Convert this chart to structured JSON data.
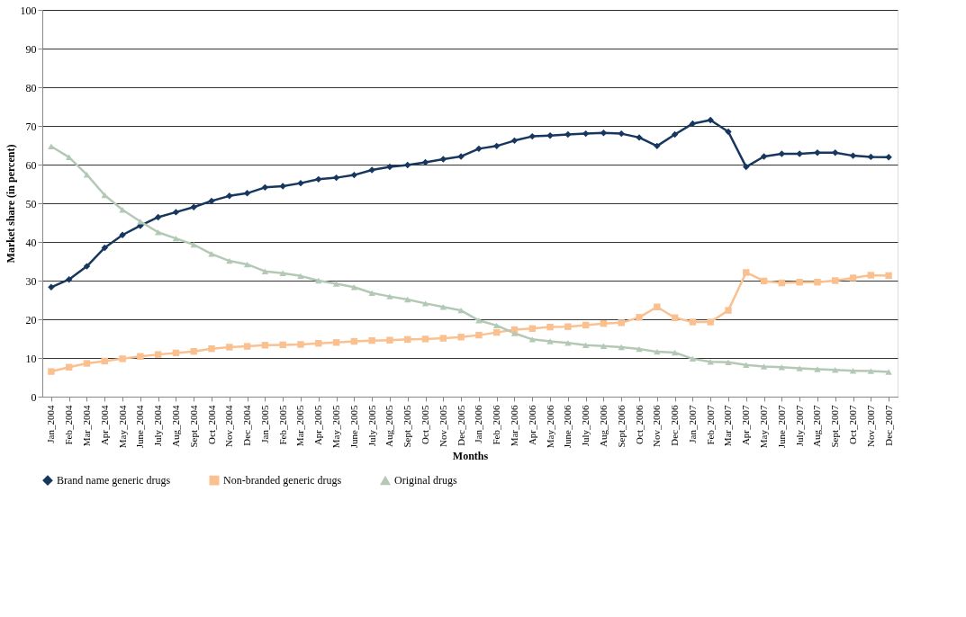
{
  "chart_data": {
    "type": "line",
    "xlabel": "Months",
    "ylabel": "Market share (in percent)",
    "categories": [
      "Jan_2004",
      "Feb_2004",
      "Mar_2004",
      "Apr_2004",
      "May_2004",
      "June_2004",
      "July_2004",
      "Aug_2004",
      "Sept_2004",
      "Oct_2004",
      "Nov_2004",
      "Dec_2004",
      "Jan_2005",
      "Feb_2005",
      "Mar_2005",
      "Apr_2005",
      "May_2005",
      "June_2005",
      "July_2005",
      "Aug_2005",
      "Sept_2005",
      "Oct_2005",
      "Nov_2005",
      "Dec_2005",
      "Jan_2006",
      "Feb_2006",
      "Mar_2006",
      "Apr_2006",
      "May_2006",
      "June_2006",
      "July_2006",
      "Aug_2006",
      "Sept_2006",
      "Oct_2006",
      "Nov_2006",
      "Dec_2006",
      "Jan_2007",
      "Feb_2007",
      "Mar_2007",
      "Apr_2007",
      "May_2007",
      "June_2007",
      "July_2007",
      "Aug_2007",
      "Sept_2007",
      "Oct_2007",
      "Nov_2007",
      "Dec_2007"
    ],
    "series": [
      {
        "name": "Brand name generic drugs",
        "color": "#17375e",
        "marker": "diamond",
        "values": [
          28.3,
          30.3,
          33.7,
          38.5,
          41.8,
          44.2,
          46.4,
          47.7,
          49.0,
          50.6,
          51.9,
          52.6,
          54.1,
          54.4,
          55.2,
          56.2,
          56.6,
          57.3,
          58.6,
          59.4,
          59.9,
          60.6,
          61.4,
          62.1,
          64.1,
          64.8,
          66.2,
          67.3,
          67.5,
          67.8,
          68.0,
          68.2,
          68.0,
          67.0,
          64.8,
          67.8,
          70.6,
          71.5,
          68.5,
          59.4,
          62.1,
          62.8,
          62.8,
          63.1,
          63.1,
          62.3,
          62.0,
          61.9
        ]
      },
      {
        "name": "Non-branded generic drugs",
        "color": "#fac090",
        "marker": "square",
        "values": [
          6.5,
          7.6,
          8.6,
          9.2,
          9.8,
          10.4,
          10.9,
          11.3,
          11.7,
          12.4,
          12.8,
          13.0,
          13.3,
          13.4,
          13.5,
          13.8,
          14.0,
          14.3,
          14.5,
          14.6,
          14.8,
          14.9,
          15.1,
          15.4,
          15.9,
          16.6,
          17.3,
          17.6,
          18.0,
          18.1,
          18.5,
          18.9,
          19.1,
          20.5,
          23.2,
          20.4,
          19.3,
          19.3,
          22.3,
          32.1,
          29.9,
          29.4,
          29.6,
          29.6,
          30.0,
          30.7,
          31.4,
          31.3
        ]
      },
      {
        "name": "Original drugs",
        "color": "#b3c9b5",
        "marker": "triangle",
        "values": [
          64.7,
          61.9,
          57.4,
          52.1,
          48.3,
          45.3,
          42.5,
          40.9,
          39.3,
          36.9,
          35.1,
          34.2,
          32.4,
          31.9,
          31.2,
          30.0,
          29.2,
          28.3,
          26.8,
          25.9,
          25.1,
          24.1,
          23.2,
          22.3,
          19.7,
          18.4,
          16.4,
          14.8,
          14.3,
          13.9,
          13.3,
          13.1,
          12.8,
          12.3,
          11.6,
          11.4,
          9.8,
          9.0,
          8.9,
          8.2,
          7.8,
          7.6,
          7.3,
          7.1,
          6.9,
          6.7,
          6.6,
          6.4
        ]
      }
    ],
    "ylim": [
      0,
      100
    ],
    "yticks": [
      0,
      10,
      20,
      30,
      40,
      50,
      60,
      70,
      80,
      90,
      100
    ],
    "grid": "y",
    "legend": "bottom",
    "line_style": "solid"
  }
}
